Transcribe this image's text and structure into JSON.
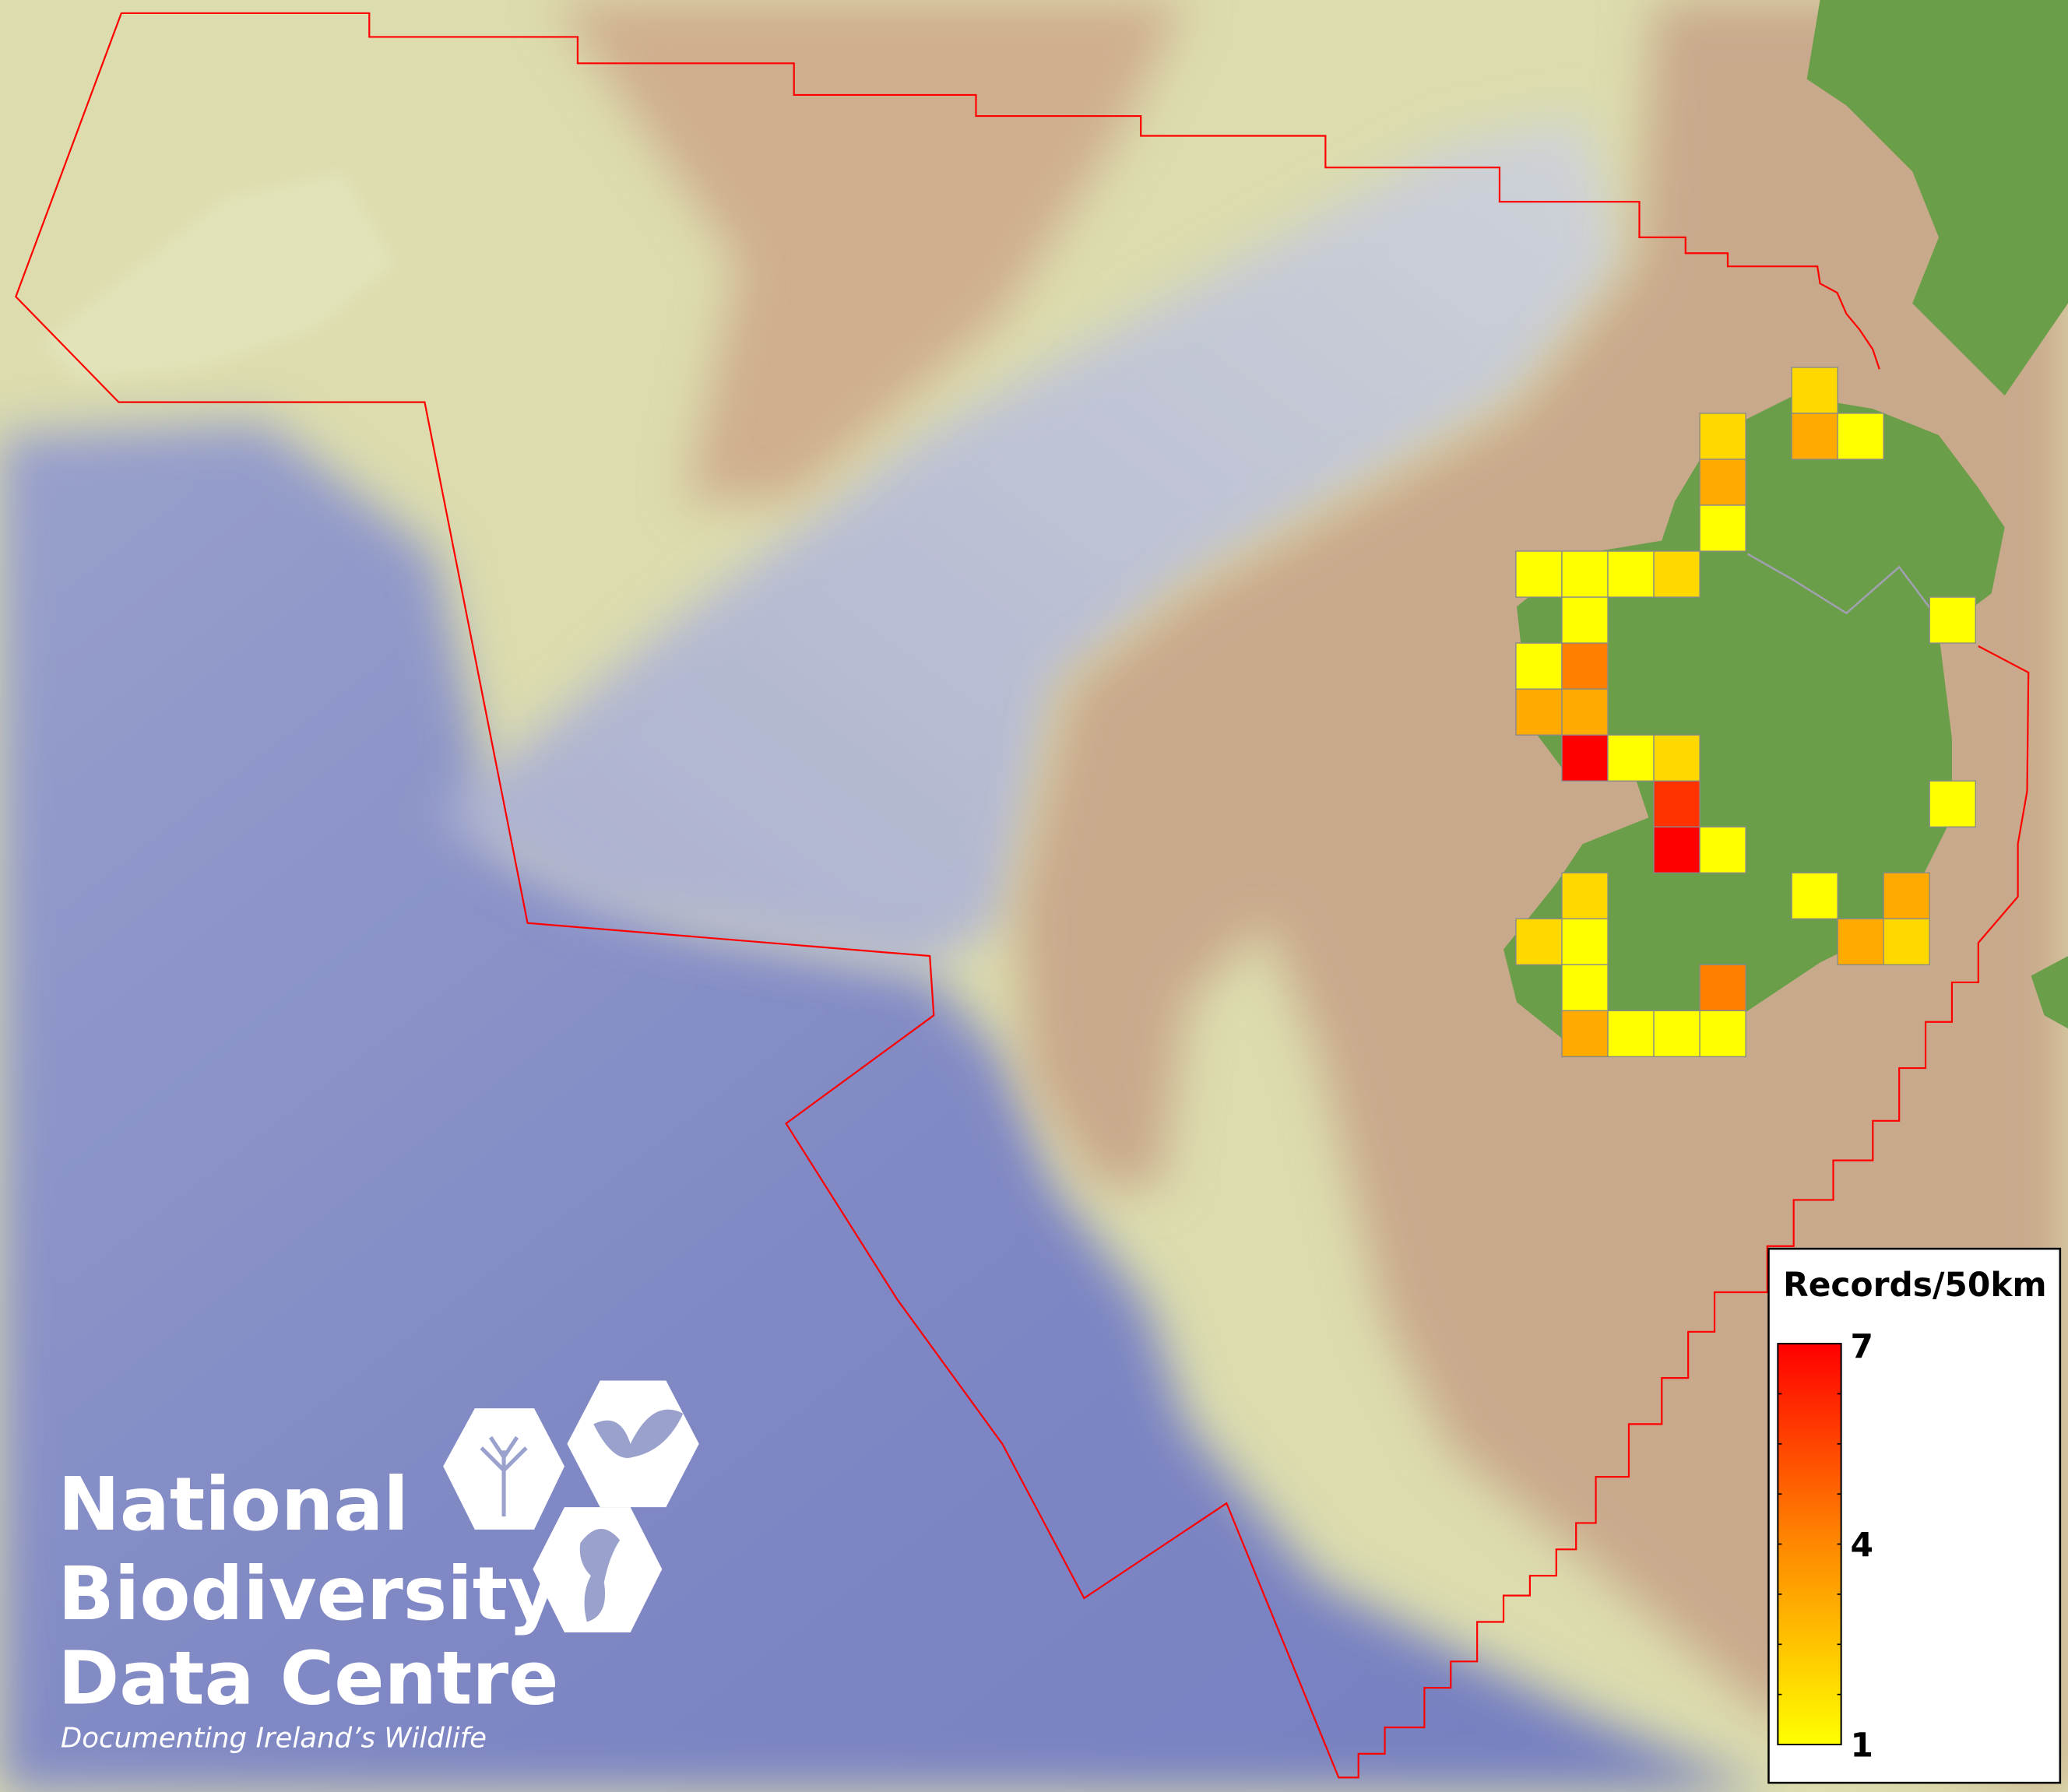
{
  "legend": {
    "title": "Records/50km",
    "max_label": "7",
    "mid_label": "4",
    "min_label": "1",
    "color_min": "#FFFF00",
    "color_max": "#FF0000"
  },
  "logo": {
    "line1": "National",
    "line2": "Biodiversity",
    "line3": "Data Centre",
    "tagline": "Documenting Ireland’s Wildlife",
    "icons": [
      "tree-icon",
      "butterfly-icon",
      "seahorse-icon"
    ]
  },
  "colors": {
    "boundary": "#FF0000",
    "land": "#6A9E48",
    "shelf": "#C9A98C",
    "deep_sea": "#7E86C4",
    "cell_border": "#8A8A8A"
  },
  "grid_cells": [
    {
      "col": 6,
      "row": 0,
      "value": 2
    },
    {
      "col": 4,
      "row": 1,
      "value": 2
    },
    {
      "col": 6,
      "row": 1,
      "value": 3
    },
    {
      "col": 7,
      "row": 1,
      "value": 1
    },
    {
      "col": 4,
      "row": 2,
      "value": 3
    },
    {
      "col": 4,
      "row": 3,
      "value": 1
    },
    {
      "col": 0,
      "row": 4,
      "value": 1
    },
    {
      "col": 1,
      "row": 4,
      "value": 1
    },
    {
      "col": 2,
      "row": 4,
      "value": 1
    },
    {
      "col": 3,
      "row": 4,
      "value": 2
    },
    {
      "col": 1,
      "row": 5,
      "value": 1
    },
    {
      "col": 9,
      "row": 5,
      "value": 1
    },
    {
      "col": 0,
      "row": 6,
      "value": 1
    },
    {
      "col": 1,
      "row": 6,
      "value": 4
    },
    {
      "col": 0,
      "row": 7,
      "value": 3
    },
    {
      "col": 1,
      "row": 7,
      "value": 3
    },
    {
      "col": 1,
      "row": 8,
      "value": 7
    },
    {
      "col": 2,
      "row": 8,
      "value": 1
    },
    {
      "col": 3,
      "row": 8,
      "value": 2
    },
    {
      "col": 3,
      "row": 9,
      "value": 6
    },
    {
      "col": 9,
      "row": 9,
      "value": 1
    },
    {
      "col": 3,
      "row": 10,
      "value": 7
    },
    {
      "col": 4,
      "row": 10,
      "value": 1
    },
    {
      "col": 1,
      "row": 11,
      "value": 2
    },
    {
      "col": 6,
      "row": 11,
      "value": 1
    },
    {
      "col": 8,
      "row": 11,
      "value": 3
    },
    {
      "col": 0,
      "row": 12,
      "value": 2
    },
    {
      "col": 1,
      "row": 12,
      "value": 1
    },
    {
      "col": 7,
      "row": 12,
      "value": 3
    },
    {
      "col": 8,
      "row": 12,
      "value": 2
    },
    {
      "col": 1,
      "row": 13,
      "value": 1
    },
    {
      "col": 4,
      "row": 13,
      "value": 4
    },
    {
      "col": 1,
      "row": 14,
      "value": 3
    },
    {
      "col": 2,
      "row": 14,
      "value": 1
    },
    {
      "col": 3,
      "row": 14,
      "value": 1
    },
    {
      "col": 4,
      "row": 14,
      "value": 1
    }
  ]
}
